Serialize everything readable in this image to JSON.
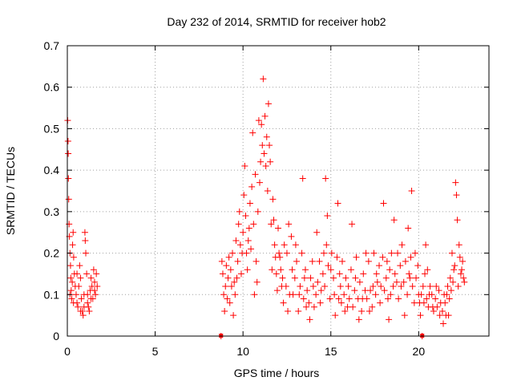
{
  "chart_data": {
    "type": "scatter",
    "title": "Day 232 of 2014, SRMTID for receiver hob2",
    "xlabel": "GPS time / hours",
    "ylabel": "SRMTID / TECUs",
    "xlim": [
      0,
      24
    ],
    "ylim": [
      0,
      0.7
    ],
    "xticks": [
      0,
      5,
      10,
      15,
      20
    ],
    "yticks": [
      0,
      0.1,
      0.2,
      0.3,
      0.4,
      0.5,
      0.6,
      0.7
    ],
    "xtick_labels": [
      "0",
      "5",
      "10",
      "15",
      "20"
    ],
    "ytick_labels": [
      "0",
      "0.1",
      "0.2",
      "0.3",
      "0.4",
      "0.5",
      "0.6",
      "0.7"
    ],
    "grid": true,
    "marker": "+",
    "color": "#ff0000",
    "series": [
      {
        "name": "hob2",
        "points": [
          [
            0.02,
            0.52
          ],
          [
            0.04,
            0.47
          ],
          [
            0.05,
            0.44
          ],
          [
            0.06,
            0.38
          ],
          [
            0.08,
            0.33
          ],
          [
            0.1,
            0.27
          ],
          [
            0.12,
            0.24
          ],
          [
            0.15,
            0.2
          ],
          [
            0.18,
            0.17
          ],
          [
            0.2,
            0.14
          ],
          [
            0.22,
            0.11
          ],
          [
            0.25,
            0.09
          ],
          [
            0.28,
            0.13
          ],
          [
            0.3,
            0.22
          ],
          [
            0.33,
            0.25
          ],
          [
            0.36,
            0.19
          ],
          [
            0.4,
            0.15
          ],
          [
            0.45,
            0.12
          ],
          [
            0.5,
            0.1
          ],
          [
            0.55,
            0.08
          ],
          [
            0.6,
            0.07
          ],
          [
            0.65,
            0.12
          ],
          [
            0.7,
            0.17
          ],
          [
            0.75,
            0.14
          ],
          [
            0.8,
            0.09
          ],
          [
            0.85,
            0.06
          ],
          [
            0.9,
            0.05
          ],
          [
            0.95,
            0.1
          ],
          [
            1.0,
            0.25
          ],
          [
            1.02,
            0.23
          ],
          [
            1.05,
            0.2
          ],
          [
            1.1,
            0.15
          ],
          [
            1.15,
            0.1
          ],
          [
            1.2,
            0.07
          ],
          [
            1.25,
            0.06
          ],
          [
            1.3,
            0.11
          ],
          [
            1.35,
            0.14
          ],
          [
            1.4,
            0.12
          ],
          [
            1.45,
            0.09
          ],
          [
            1.5,
            0.16
          ],
          [
            1.55,
            0.13
          ],
          [
            1.6,
            0.1
          ],
          [
            1.65,
            0.15
          ],
          [
            1.7,
            0.12
          ],
          [
            0.15,
            0.1
          ],
          [
            0.35,
            0.08
          ],
          [
            0.55,
            0.15
          ],
          [
            0.75,
            0.06
          ],
          [
            0.95,
            0.07
          ],
          [
            1.15,
            0.08
          ],
          [
            1.35,
            0.09
          ],
          [
            1.55,
            0.11
          ],
          [
            8.75,
            0.0
          ],
          [
            8.8,
            0.18
          ],
          [
            8.85,
            0.15
          ],
          [
            8.9,
            0.1
          ],
          [
            8.95,
            0.06
          ],
          [
            9.0,
            0.12
          ],
          [
            9.05,
            0.17
          ],
          [
            9.1,
            0.09
          ],
          [
            9.15,
            0.14
          ],
          [
            9.2,
            0.19
          ],
          [
            9.3,
            0.16
          ],
          [
            9.4,
            0.2
          ],
          [
            9.5,
            0.13
          ],
          [
            9.6,
            0.23
          ],
          [
            9.7,
            0.18
          ],
          [
            9.75,
            0.27
          ],
          [
            9.8,
            0.3
          ],
          [
            9.85,
            0.22
          ],
          [
            9.9,
            0.15
          ],
          [
            10.0,
            0.25
          ],
          [
            10.05,
            0.34
          ],
          [
            10.1,
            0.41
          ],
          [
            10.15,
            0.29
          ],
          [
            10.2,
            0.2
          ],
          [
            10.3,
            0.23
          ],
          [
            10.4,
            0.32
          ],
          [
            10.5,
            0.36
          ],
          [
            10.55,
            0.49
          ],
          [
            10.6,
            0.27
          ],
          [
            10.7,
            0.39
          ],
          [
            10.75,
            0.18
          ],
          [
            10.8,
            0.13
          ],
          [
            10.85,
            0.3
          ],
          [
            10.9,
            0.52
          ],
          [
            10.95,
            0.37
          ],
          [
            11.0,
            0.42
          ],
          [
            11.05,
            0.51
          ],
          [
            11.1,
            0.46
          ],
          [
            11.15,
            0.62
          ],
          [
            11.2,
            0.44
          ],
          [
            11.25,
            0.53
          ],
          [
            11.3,
            0.41
          ],
          [
            11.35,
            0.48
          ],
          [
            11.4,
            0.35
          ],
          [
            11.45,
            0.56
          ],
          [
            11.5,
            0.46
          ],
          [
            11.55,
            0.42
          ],
          [
            11.6,
            0.27
          ],
          [
            11.7,
            0.33
          ],
          [
            11.8,
            0.22
          ],
          [
            11.9,
            0.15
          ],
          [
            12.0,
            0.26
          ],
          [
            12.1,
            0.19
          ],
          [
            12.2,
            0.12
          ],
          [
            12.3,
            0.08
          ],
          [
            12.5,
            0.2
          ],
          [
            12.6,
            0.27
          ],
          [
            12.8,
            0.16
          ],
          [
            13.0,
            0.22
          ],
          [
            13.2,
            0.1
          ],
          [
            13.4,
            0.38
          ],
          [
            13.5,
            0.14
          ],
          [
            13.6,
            0.07
          ],
          [
            13.8,
            0.04
          ],
          [
            14.0,
            0.12
          ],
          [
            14.2,
            0.25
          ],
          [
            14.4,
            0.08
          ],
          [
            14.6,
            0.2
          ],
          [
            14.7,
            0.38
          ],
          [
            14.8,
            0.29
          ],
          [
            15.0,
            0.16
          ],
          [
            15.2,
            0.1
          ],
          [
            15.4,
            0.32
          ],
          [
            15.5,
            0.15
          ],
          [
            15.6,
            0.08
          ],
          [
            15.8,
            0.06
          ],
          [
            16.0,
            0.12
          ],
          [
            16.2,
            0.27
          ],
          [
            16.4,
            0.14
          ],
          [
            16.6,
            0.04
          ],
          [
            16.8,
            0.09
          ],
          [
            17.0,
            0.2
          ],
          [
            17.2,
            0.06
          ],
          [
            17.4,
            0.12
          ],
          [
            17.6,
            0.15
          ],
          [
            17.8,
            0.08
          ],
          [
            18.0,
            0.32
          ],
          [
            18.2,
            0.18
          ],
          [
            18.3,
            0.04
          ],
          [
            18.4,
            0.1
          ],
          [
            18.6,
            0.28
          ],
          [
            18.8,
            0.2
          ],
          [
            19.0,
            0.12
          ],
          [
            19.2,
            0.05
          ],
          [
            19.4,
            0.26
          ],
          [
            19.5,
            0.14
          ],
          [
            19.6,
            0.35
          ],
          [
            19.8,
            0.2
          ],
          [
            20.0,
            0.1
          ],
          [
            20.1,
            0.05
          ],
          [
            20.2,
            0.0
          ],
          [
            20.3,
            0.08
          ],
          [
            20.4,
            0.22
          ],
          [
            20.5,
            0.16
          ],
          [
            20.6,
            0.1
          ],
          [
            20.8,
            0.07
          ],
          [
            21.0,
            0.12
          ],
          [
            21.2,
            0.05
          ],
          [
            21.4,
            0.03
          ],
          [
            21.5,
            0.08
          ],
          [
            21.6,
            0.1
          ],
          [
            21.7,
            0.05
          ],
          [
            21.8,
            0.14
          ],
          [
            21.9,
            0.2
          ],
          [
            22.0,
            0.16
          ],
          [
            22.1,
            0.37
          ],
          [
            22.15,
            0.34
          ],
          [
            22.2,
            0.28
          ],
          [
            22.3,
            0.22
          ],
          [
            22.4,
            0.15
          ],
          [
            22.5,
            0.18
          ],
          [
            22.6,
            0.13
          ],
          [
            9.25,
            0.08
          ],
          [
            9.35,
            0.12
          ],
          [
            9.45,
            0.05
          ],
          [
            9.55,
            0.1
          ],
          [
            9.65,
            0.14
          ],
          [
            9.95,
            0.2
          ],
          [
            10.25,
            0.16
          ],
          [
            10.35,
            0.26
          ],
          [
            10.45,
            0.21
          ],
          [
            10.65,
            0.1
          ],
          [
            11.65,
            0.16
          ],
          [
            11.75,
            0.28
          ],
          [
            11.85,
            0.19
          ],
          [
            11.95,
            0.11
          ],
          [
            12.05,
            0.2
          ],
          [
            12.15,
            0.16
          ],
          [
            12.25,
            0.14
          ],
          [
            12.35,
            0.22
          ],
          [
            12.45,
            0.12
          ],
          [
            12.55,
            0.06
          ],
          [
            12.65,
            0.1
          ],
          [
            12.75,
            0.24
          ],
          [
            12.85,
            0.1
          ],
          [
            12.95,
            0.14
          ],
          [
            13.05,
            0.18
          ],
          [
            13.15,
            0.06
          ],
          [
            13.25,
            0.12
          ],
          [
            13.35,
            0.2
          ],
          [
            13.45,
            0.09
          ],
          [
            13.55,
            0.16
          ],
          [
            13.65,
            0.11
          ],
          [
            13.75,
            0.08
          ],
          [
            13.85,
            0.14
          ],
          [
            13.95,
            0.18
          ],
          [
            14.05,
            0.07
          ],
          [
            14.15,
            0.1
          ],
          [
            14.25,
            0.13
          ],
          [
            14.35,
            0.18
          ],
          [
            14.45,
            0.11
          ],
          [
            14.55,
            0.15
          ],
          [
            14.65,
            0.12
          ],
          [
            14.75,
            0.22
          ],
          [
            14.85,
            0.17
          ],
          [
            14.95,
            0.09
          ],
          [
            15.05,
            0.2
          ],
          [
            15.15,
            0.14
          ],
          [
            15.25,
            0.05
          ],
          [
            15.35,
            0.19
          ],
          [
            15.45,
            0.09
          ],
          [
            15.55,
            0.12
          ],
          [
            15.65,
            0.18
          ],
          [
            15.75,
            0.1
          ],
          [
            15.85,
            0.14
          ],
          [
            15.95,
            0.07
          ],
          [
            16.05,
            0.09
          ],
          [
            16.15,
            0.16
          ],
          [
            16.25,
            0.07
          ],
          [
            16.35,
            0.11
          ],
          [
            16.45,
            0.19
          ],
          [
            16.55,
            0.09
          ],
          [
            16.65,
            0.13
          ],
          [
            16.75,
            0.06
          ],
          [
            16.85,
            0.15
          ],
          [
            16.95,
            0.11
          ],
          [
            17.05,
            0.09
          ],
          [
            17.15,
            0.18
          ],
          [
            17.25,
            0.11
          ],
          [
            17.35,
            0.07
          ],
          [
            17.45,
            0.2
          ],
          [
            17.55,
            0.1
          ],
          [
            17.65,
            0.13
          ],
          [
            17.75,
            0.17
          ],
          [
            17.85,
            0.12
          ],
          [
            17.95,
            0.19
          ],
          [
            18.05,
            0.11
          ],
          [
            18.15,
            0.14
          ],
          [
            18.25,
            0.09
          ],
          [
            18.35,
            0.16
          ],
          [
            18.45,
            0.2
          ],
          [
            18.55,
            0.12
          ],
          [
            18.65,
            0.15
          ],
          [
            18.75,
            0.13
          ],
          [
            18.85,
            0.09
          ],
          [
            18.95,
            0.17
          ],
          [
            19.05,
            0.22
          ],
          [
            19.15,
            0.13
          ],
          [
            19.25,
            0.18
          ],
          [
            19.35,
            0.1
          ],
          [
            19.45,
            0.15
          ],
          [
            19.55,
            0.19
          ],
          [
            19.65,
            0.12
          ],
          [
            19.75,
            0.08
          ],
          [
            19.85,
            0.14
          ],
          [
            19.95,
            0.17
          ],
          [
            20.05,
            0.08
          ],
          [
            20.15,
            0.1
          ],
          [
            20.25,
            0.12
          ],
          [
            20.35,
            0.15
          ],
          [
            20.45,
            0.09
          ],
          [
            20.55,
            0.07
          ],
          [
            20.65,
            0.12
          ],
          [
            20.75,
            0.1
          ],
          [
            20.85,
            0.06
          ],
          [
            20.95,
            0.09
          ],
          [
            21.05,
            0.07
          ],
          [
            21.15,
            0.11
          ],
          [
            21.25,
            0.08
          ],
          [
            21.35,
            0.06
          ],
          [
            21.45,
            0.1
          ],
          [
            21.55,
            0.05
          ],
          [
            21.65,
            0.12
          ],
          [
            21.75,
            0.09
          ],
          [
            21.85,
            0.11
          ],
          [
            21.95,
            0.13
          ],
          [
            22.05,
            0.17
          ],
          [
            22.25,
            0.12
          ],
          [
            22.35,
            0.19
          ],
          [
            22.45,
            0.16
          ],
          [
            22.55,
            0.14
          ]
        ]
      }
    ],
    "zero_markers": [
      {
        "x": 8.75,
        "y": 0
      },
      {
        "x": 20.2,
        "y": 0
      }
    ]
  }
}
